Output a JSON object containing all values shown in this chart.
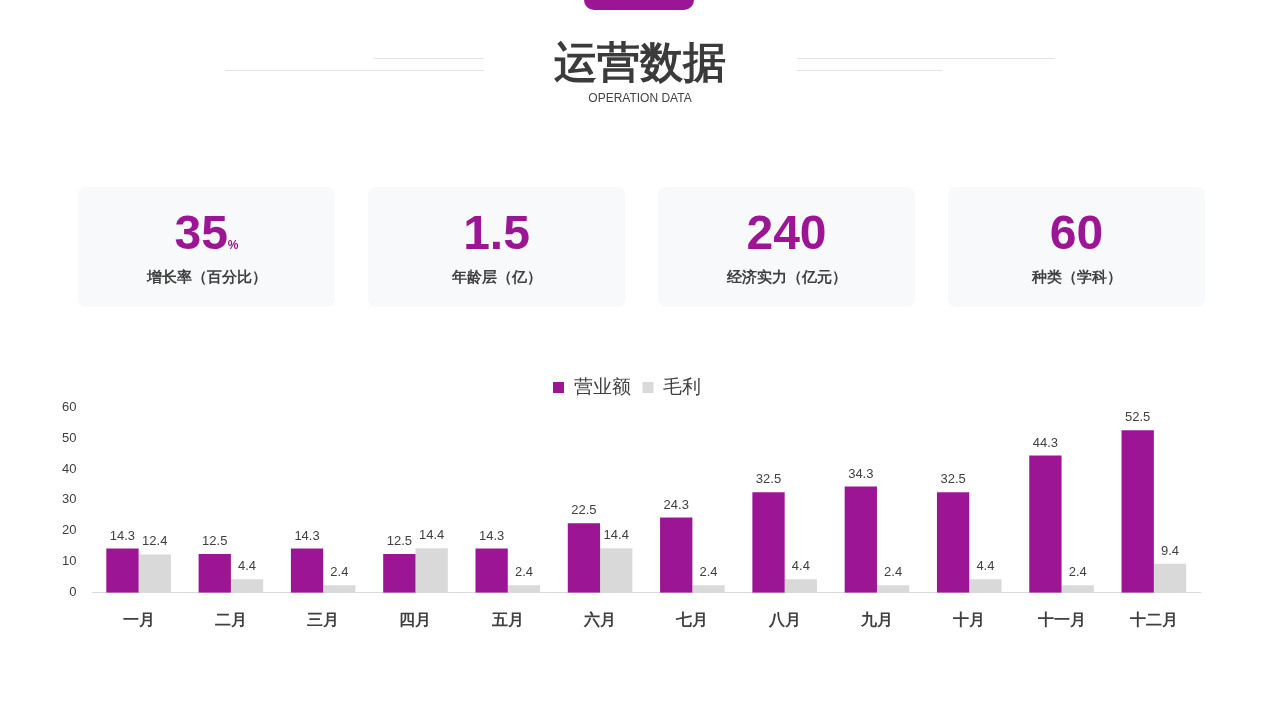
{
  "chart_data": [
    {
      "type": "other",
      "title": "运营数据",
      "subtitle": "OPERATION DATA",
      "annotations": [
        "35%",
        "增长率（百分比）",
        "1.5",
        "年龄层（亿）",
        "240",
        "经济实力（亿元）",
        "60",
        "种类（学科）"
      ]
    },
    {
      "type": "bar",
      "categories": [
        "一月",
        "二月",
        "三月",
        "四月",
        "五月",
        "六月",
        "七月",
        "八月",
        "九月",
        "十月",
        "十一月",
        "十二月"
      ],
      "series": [
        {
          "name": "营业额",
          "color": "#9c1594",
          "values": [
            14.3,
            12.5,
            14.3,
            12.5,
            14.3,
            22.5,
            24.3,
            32.5,
            34.3,
            32.5,
            44.3,
            52.5
          ]
        },
        {
          "name": "毛利",
          "color": "#d9d9d9",
          "values": [
            12.4,
            4.4,
            2.4,
            14.4,
            2.4,
            14.4,
            2.4,
            4.4,
            2.4,
            4.4,
            2.4,
            9.4
          ]
        }
      ],
      "ylim": [
        0,
        60
      ],
      "yticks": [
        0,
        10,
        20,
        30,
        40,
        50,
        60
      ],
      "legend": "top",
      "data_labels": true,
      "grid": false
    }
  ]
}
